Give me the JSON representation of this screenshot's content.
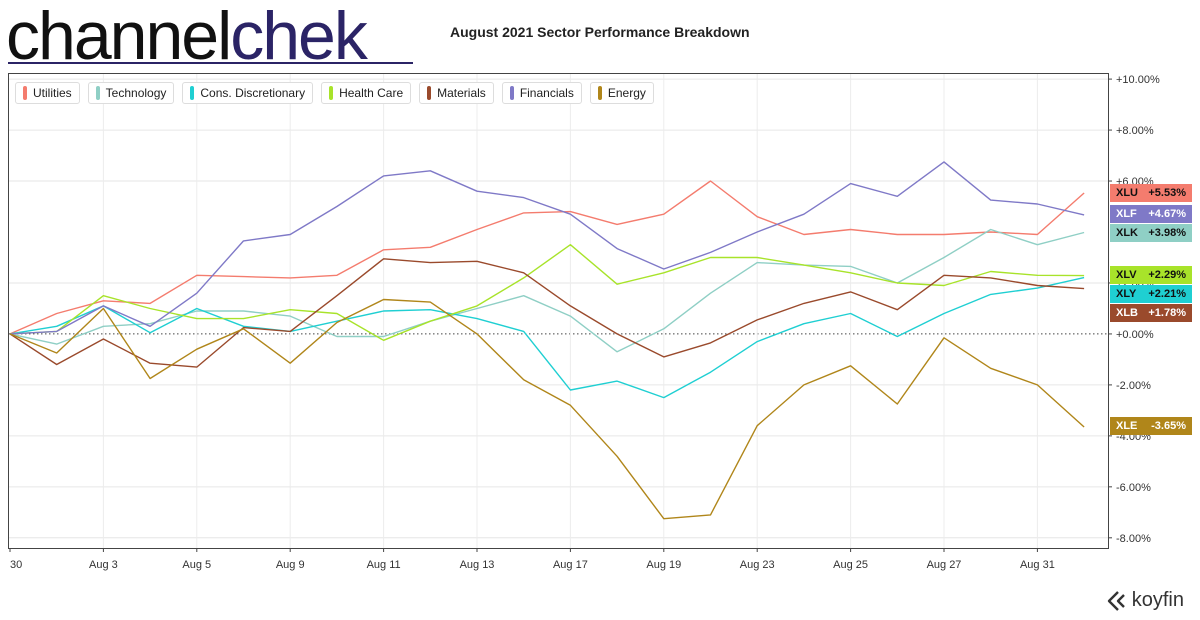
{
  "logo": {
    "part1": "channel",
    "part2": "chek"
  },
  "title": "August 2021 Sector Performance Breakdown",
  "brand": {
    "name": "koyfin"
  },
  "chart_data": {
    "type": "line",
    "title": "August 2021 Sector Performance Breakdown",
    "x_labels": [
      "30",
      "Aug 3",
      "Aug 5",
      "Aug 9",
      "Aug 11",
      "Aug 13",
      "Aug 17",
      "Aug 19",
      "Aug 23",
      "Aug 25",
      "Aug 27",
      "Aug 31"
    ],
    "x_label_index": [
      0,
      2,
      4,
      6,
      8,
      10,
      12,
      14,
      16,
      18,
      20,
      22
    ],
    "y_ticks": [
      10,
      8,
      6,
      2,
      0,
      -2,
      -4,
      -6,
      -8
    ],
    "y_tick_labels": [
      "+10.00%",
      "+8.00%",
      "+6.00%",
      "+2.00%",
      "+0.00%",
      "-2.00%",
      "-4.00%",
      "-6.00%",
      "-8.00%"
    ],
    "ylim": [
      -8.4,
      10.2
    ],
    "x_count": 24,
    "grid": true,
    "legend_position": "top-left",
    "series": [
      {
        "name": "Utilities",
        "ticker": "XLU",
        "end_label": "+5.53%",
        "color": "#f47c6e",
        "values": [
          0,
          0.8,
          1.3,
          1.2,
          2.3,
          2.25,
          2.2,
          2.3,
          3.3,
          3.4,
          4.1,
          4.75,
          4.8,
          4.3,
          4.7,
          6.0,
          4.6,
          3.9,
          4.1,
          3.9,
          3.9,
          4.0,
          3.9,
          5.53
        ]
      },
      {
        "name": "Technology",
        "ticker": "XLK",
        "end_label": "+3.98%",
        "color": "#8fcfc5",
        "values": [
          0,
          -0.4,
          0.3,
          0.4,
          0.9,
          0.9,
          0.7,
          -0.1,
          -0.1,
          0.5,
          1.0,
          1.5,
          0.7,
          -0.7,
          0.2,
          1.6,
          2.8,
          2.7,
          2.65,
          2.0,
          3.0,
          4.1,
          3.5,
          3.98
        ]
      },
      {
        "name": "Cons. Discretionary",
        "ticker": "XLY",
        "end_label": "+2.21%",
        "color": "#1fcfd2",
        "values": [
          0,
          0.3,
          1.1,
          0.05,
          1.0,
          0.3,
          0.1,
          0.5,
          0.9,
          0.95,
          0.6,
          0.1,
          -2.2,
          -1.85,
          -2.5,
          -1.5,
          -0.3,
          0.4,
          0.8,
          -0.1,
          0.8,
          1.55,
          1.8,
          2.21
        ]
      },
      {
        "name": "Health Care",
        "ticker": "XLV",
        "end_label": "+2.29%",
        "color": "#a8e32a",
        "values": [
          0,
          0.1,
          1.5,
          1.0,
          0.6,
          0.6,
          0.95,
          0.8,
          -0.25,
          0.5,
          1.1,
          2.2,
          3.5,
          1.95,
          2.4,
          3.0,
          3.0,
          2.7,
          2.4,
          2.0,
          1.9,
          2.45,
          2.3,
          2.29
        ]
      },
      {
        "name": "Materials",
        "ticker": "XLB",
        "end_label": "+1.78%",
        "color": "#9a4a2c",
        "values": [
          0,
          -1.2,
          -0.2,
          -1.15,
          -1.3,
          0.25,
          0.1,
          1.5,
          2.95,
          2.8,
          2.85,
          2.4,
          1.1,
          0.0,
          -0.9,
          -0.35,
          0.55,
          1.2,
          1.65,
          0.95,
          2.3,
          2.2,
          1.9,
          1.78
        ]
      },
      {
        "name": "Financials",
        "ticker": "XLF",
        "end_label": "+4.67%",
        "color": "#7f79c7",
        "values": [
          0,
          0.1,
          1.1,
          0.3,
          1.6,
          3.65,
          3.9,
          5.0,
          6.2,
          6.4,
          5.6,
          5.35,
          4.7,
          3.35,
          2.55,
          3.2,
          4.0,
          4.7,
          5.9,
          5.4,
          6.75,
          5.25,
          5.1,
          4.67
        ]
      },
      {
        "name": "Energy",
        "ticker": "XLE",
        "end_label": "-3.65%",
        "color": "#b0861a",
        "values": [
          0,
          -0.75,
          1.0,
          -1.75,
          -0.6,
          0.2,
          -1.15,
          0.45,
          1.35,
          1.25,
          0.0,
          -1.8,
          -2.8,
          -4.8,
          -7.25,
          -7.1,
          -3.6,
          -2.0,
          -1.25,
          -2.75,
          -0.15,
          -1.35,
          -2.0,
          -3.65
        ]
      }
    ]
  }
}
